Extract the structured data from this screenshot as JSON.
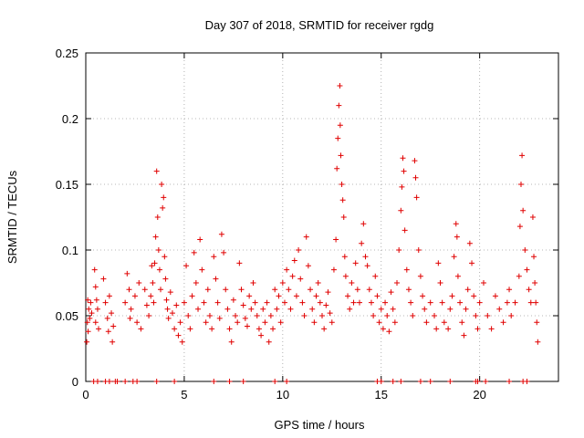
{
  "chart_data": {
    "type": "scatter",
    "title": "Day 307 of 2018, SRMTID for receiver rgdg",
    "xlabel": "GPS time / hours",
    "ylabel": "SRMTID / TECUs",
    "xlim": [
      0,
      24
    ],
    "ylim": [
      0,
      0.25
    ],
    "x_ticks": [
      0,
      5,
      10,
      15,
      20
    ],
    "x_tick_labels": [
      "0",
      "5",
      "10",
      "15",
      "20"
    ],
    "y_ticks": [
      0,
      0.05,
      0.1,
      0.15,
      0.2,
      0.25
    ],
    "y_tick_labels": [
      "0",
      "0.05",
      "0.1",
      "0.15",
      "0.2",
      "0.25"
    ],
    "grid": true,
    "marker": "+",
    "series_color": "#e00000",
    "series": [
      {
        "name": "SRMTID",
        "points": [
          [
            0.05,
            0.03
          ],
          [
            0.08,
            0.045
          ],
          [
            0.1,
            0.062
          ],
          [
            0.12,
            0.038
          ],
          [
            0.15,
            0.055
          ],
          [
            0.2,
            0.048
          ],
          [
            0.25,
            0.06
          ],
          [
            0.3,
            0.052
          ],
          [
            0.45,
            0.085
          ],
          [
            0.5,
            0.072
          ],
          [
            0.55,
            0.062
          ],
          [
            0.5,
            0.045
          ],
          [
            0.6,
            0.055
          ],
          [
            0.65,
            0.04
          ],
          [
            0.9,
            0.078
          ],
          [
            1.0,
            0.06
          ],
          [
            1.1,
            0.048
          ],
          [
            1.15,
            0.038
          ],
          [
            1.2,
            0.065
          ],
          [
            1.3,
            0.052
          ],
          [
            1.35,
            0.03
          ],
          [
            1.4,
            0.042
          ],
          [
            2.0,
            0.06
          ],
          [
            2.1,
            0.082
          ],
          [
            2.2,
            0.07
          ],
          [
            2.25,
            0.048
          ],
          [
            2.3,
            0.055
          ],
          [
            2.5,
            0.065
          ],
          [
            2.6,
            0.045
          ],
          [
            2.7,
            0.075
          ],
          [
            2.8,
            0.04
          ],
          [
            3.0,
            0.07
          ],
          [
            3.1,
            0.058
          ],
          [
            3.2,
            0.05
          ],
          [
            3.3,
            0.065
          ],
          [
            3.35,
            0.088
          ],
          [
            3.4,
            0.075
          ],
          [
            3.45,
            0.06
          ],
          [
            3.5,
            0.09
          ],
          [
            3.55,
            0.11
          ],
          [
            3.6,
            0.16
          ],
          [
            3.65,
            0.125
          ],
          [
            3.7,
            0.1
          ],
          [
            3.75,
            0.085
          ],
          [
            3.8,
            0.07
          ],
          [
            3.85,
            0.15
          ],
          [
            3.9,
            0.132
          ],
          [
            3.95,
            0.14
          ],
          [
            4.0,
            0.095
          ],
          [
            4.05,
            0.078
          ],
          [
            4.1,
            0.062
          ],
          [
            4.15,
            0.055
          ],
          [
            4.2,
            0.048
          ],
          [
            4.3,
            0.068
          ],
          [
            4.4,
            0.052
          ],
          [
            4.5,
            0.04
          ],
          [
            4.6,
            0.058
          ],
          [
            4.7,
            0.035
          ],
          [
            4.8,
            0.045
          ],
          [
            4.9,
            0.03
          ],
          [
            5.0,
            0.06
          ],
          [
            5.1,
            0.088
          ],
          [
            5.2,
            0.05
          ],
          [
            5.3,
            0.04
          ],
          [
            5.4,
            0.065
          ],
          [
            5.5,
            0.098
          ],
          [
            5.6,
            0.075
          ],
          [
            5.7,
            0.055
          ],
          [
            5.8,
            0.108
          ],
          [
            5.9,
            0.085
          ],
          [
            6.0,
            0.06
          ],
          [
            6.1,
            0.045
          ],
          [
            6.2,
            0.07
          ],
          [
            6.3,
            0.05
          ],
          [
            6.4,
            0.04
          ],
          [
            6.5,
            0.095
          ],
          [
            6.6,
            0.078
          ],
          [
            6.7,
            0.06
          ],
          [
            6.8,
            0.048
          ],
          [
            6.9,
            0.112
          ],
          [
            7.0,
            0.098
          ],
          [
            7.1,
            0.07
          ],
          [
            7.2,
            0.055
          ],
          [
            7.3,
            0.04
          ],
          [
            7.4,
            0.03
          ],
          [
            7.5,
            0.062
          ],
          [
            7.6,
            0.05
          ],
          [
            7.7,
            0.045
          ],
          [
            7.8,
            0.09
          ],
          [
            7.9,
            0.07
          ],
          [
            8.0,
            0.058
          ],
          [
            8.1,
            0.048
          ],
          [
            8.2,
            0.042
          ],
          [
            8.3,
            0.065
          ],
          [
            8.4,
            0.055
          ],
          [
            8.5,
            0.075
          ],
          [
            8.6,
            0.06
          ],
          [
            8.7,
            0.05
          ],
          [
            8.8,
            0.04
          ],
          [
            8.9,
            0.035
          ],
          [
            9.0,
            0.055
          ],
          [
            9.1,
            0.045
          ],
          [
            9.2,
            0.06
          ],
          [
            9.3,
            0.03
          ],
          [
            9.4,
            0.05
          ],
          [
            9.5,
            0.04
          ],
          [
            9.6,
            0.07
          ],
          [
            9.7,
            0.055
          ],
          [
            9.8,
            0.065
          ],
          [
            9.9,
            0.045
          ],
          [
            10.0,
            0.075
          ],
          [
            10.1,
            0.06
          ],
          [
            10.2,
            0.085
          ],
          [
            10.3,
            0.07
          ],
          [
            10.4,
            0.055
          ],
          [
            10.5,
            0.08
          ],
          [
            10.6,
            0.092
          ],
          [
            10.7,
            0.065
          ],
          [
            10.8,
            0.1
          ],
          [
            10.9,
            0.078
          ],
          [
            11.0,
            0.06
          ],
          [
            11.1,
            0.05
          ],
          [
            11.2,
            0.11
          ],
          [
            11.3,
            0.088
          ],
          [
            11.4,
            0.07
          ],
          [
            11.5,
            0.055
          ],
          [
            11.6,
            0.045
          ],
          [
            11.7,
            0.065
          ],
          [
            11.8,
            0.075
          ],
          [
            11.9,
            0.06
          ],
          [
            12.0,
            0.05
          ],
          [
            12.1,
            0.04
          ],
          [
            12.2,
            0.058
          ],
          [
            12.3,
            0.068
          ],
          [
            12.4,
            0.052
          ],
          [
            12.5,
            0.045
          ],
          [
            12.6,
            0.085
          ],
          [
            12.7,
            0.108
          ],
          [
            12.75,
            0.162
          ],
          [
            12.8,
            0.185
          ],
          [
            12.85,
            0.21
          ],
          [
            12.9,
            0.225
          ],
          [
            12.92,
            0.195
          ],
          [
            12.95,
            0.172
          ],
          [
            13.0,
            0.15
          ],
          [
            13.05,
            0.138
          ],
          [
            13.1,
            0.125
          ],
          [
            13.15,
            0.095
          ],
          [
            13.2,
            0.08
          ],
          [
            13.3,
            0.065
          ],
          [
            13.4,
            0.055
          ],
          [
            13.5,
            0.075
          ],
          [
            13.6,
            0.06
          ],
          [
            13.7,
            0.09
          ],
          [
            13.8,
            0.07
          ],
          [
            13.9,
            0.06
          ],
          [
            14.0,
            0.105
          ],
          [
            14.1,
            0.12
          ],
          [
            14.2,
            0.095
          ],
          [
            14.3,
            0.088
          ],
          [
            14.4,
            0.07
          ],
          [
            14.5,
            0.06
          ],
          [
            14.6,
            0.05
          ],
          [
            14.7,
            0.08
          ],
          [
            14.8,
            0.065
          ],
          [
            14.9,
            0.045
          ],
          [
            15.0,
            0.055
          ],
          [
            15.1,
            0.04
          ],
          [
            15.2,
            0.06
          ],
          [
            15.3,
            0.05
          ],
          [
            15.4,
            0.038
          ],
          [
            15.5,
            0.068
          ],
          [
            15.6,
            0.055
          ],
          [
            15.7,
            0.045
          ],
          [
            15.8,
            0.075
          ],
          [
            15.9,
            0.1
          ],
          [
            16.0,
            0.13
          ],
          [
            16.05,
            0.148
          ],
          [
            16.1,
            0.17
          ],
          [
            16.15,
            0.16
          ],
          [
            16.2,
            0.115
          ],
          [
            16.3,
            0.085
          ],
          [
            16.4,
            0.07
          ],
          [
            16.5,
            0.06
          ],
          [
            16.6,
            0.05
          ],
          [
            16.7,
            0.168
          ],
          [
            16.75,
            0.155
          ],
          [
            16.8,
            0.14
          ],
          [
            16.9,
            0.1
          ],
          [
            17.0,
            0.08
          ],
          [
            17.1,
            0.065
          ],
          [
            17.2,
            0.055
          ],
          [
            17.3,
            0.045
          ],
          [
            17.5,
            0.06
          ],
          [
            17.7,
            0.05
          ],
          [
            17.8,
            0.04
          ],
          [
            17.9,
            0.09
          ],
          [
            18.0,
            0.075
          ],
          [
            18.1,
            0.06
          ],
          [
            18.2,
            0.045
          ],
          [
            18.4,
            0.04
          ],
          [
            18.5,
            0.055
          ],
          [
            18.6,
            0.065
          ],
          [
            18.7,
            0.095
          ],
          [
            18.8,
            0.12
          ],
          [
            18.85,
            0.11
          ],
          [
            18.9,
            0.08
          ],
          [
            19.0,
            0.06
          ],
          [
            19.1,
            0.045
          ],
          [
            19.2,
            0.035
          ],
          [
            19.3,
            0.055
          ],
          [
            19.4,
            0.07
          ],
          [
            19.5,
            0.105
          ],
          [
            19.6,
            0.09
          ],
          [
            19.7,
            0.065
          ],
          [
            19.8,
            0.05
          ],
          [
            19.9,
            0.04
          ],
          [
            20.0,
            0.06
          ],
          [
            20.2,
            0.075
          ],
          [
            20.4,
            0.05
          ],
          [
            20.6,
            0.04
          ],
          [
            20.8,
            0.065
          ],
          [
            21.0,
            0.055
          ],
          [
            21.2,
            0.045
          ],
          [
            21.4,
            0.06
          ],
          [
            21.5,
            0.07
          ],
          [
            21.6,
            0.05
          ],
          [
            21.8,
            0.06
          ],
          [
            22.0,
            0.08
          ],
          [
            22.05,
            0.118
          ],
          [
            22.1,
            0.15
          ],
          [
            22.15,
            0.172
          ],
          [
            22.2,
            0.13
          ],
          [
            22.3,
            0.1
          ],
          [
            22.4,
            0.085
          ],
          [
            22.5,
            0.07
          ],
          [
            22.6,
            0.06
          ],
          [
            22.7,
            0.125
          ],
          [
            22.75,
            0.095
          ],
          [
            22.8,
            0.075
          ],
          [
            22.85,
            0.06
          ],
          [
            22.9,
            0.045
          ],
          [
            22.95,
            0.03
          ]
        ]
      }
    ],
    "zero_points_x": [
      0.4,
      0.6,
      1.0,
      1.2,
      1.5,
      1.6,
      2.0,
      2.4,
      2.6,
      3.6,
      4.5,
      6.5,
      7.3,
      8.0,
      9.6,
      10.2,
      14.8,
      15.0,
      15.6,
      16.0,
      17.0,
      17.5,
      18.5,
      19.8,
      19.9,
      20.3,
      21.5,
      22.2,
      22.4
    ]
  }
}
